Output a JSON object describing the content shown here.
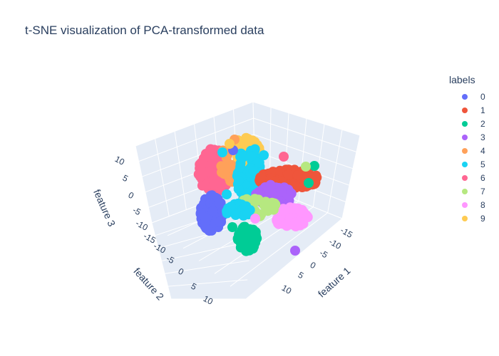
{
  "chart_data": {
    "type": "scatter",
    "subtype": "scatter3d",
    "title": "t-SNE visualization of PCA-transformed data",
    "legend_title": "labels",
    "legend_position": "right",
    "axes": {
      "x": {
        "label": "feature 1",
        "ticks": [
          "-15",
          "-10",
          "-5",
          "0",
          "5",
          "10"
        ]
      },
      "y": {
        "label": "feature 2",
        "ticks": [
          "-15",
          "-10",
          "-5",
          "0",
          "5",
          "10"
        ]
      },
      "z": {
        "label": "feature 3",
        "ticks": [
          "-10",
          "-5",
          "0",
          "5",
          "10"
        ]
      }
    },
    "grid": true,
    "background": "#e5ecf6",
    "series": [
      {
        "name": "0",
        "color": "#636efa"
      },
      {
        "name": "1",
        "color": "#ef553b"
      },
      {
        "name": "2",
        "color": "#00cc96"
      },
      {
        "name": "3",
        "color": "#ab63fa"
      },
      {
        "name": "4",
        "color": "#ffa15a"
      },
      {
        "name": "5",
        "color": "#19d3f3"
      },
      {
        "name": "6",
        "color": "#ff6692"
      },
      {
        "name": "7",
        "color": "#b6e880"
      },
      {
        "name": "8",
        "color": "#ff97ff"
      },
      {
        "name": "9",
        "color": "#fecb52"
      }
    ]
  }
}
